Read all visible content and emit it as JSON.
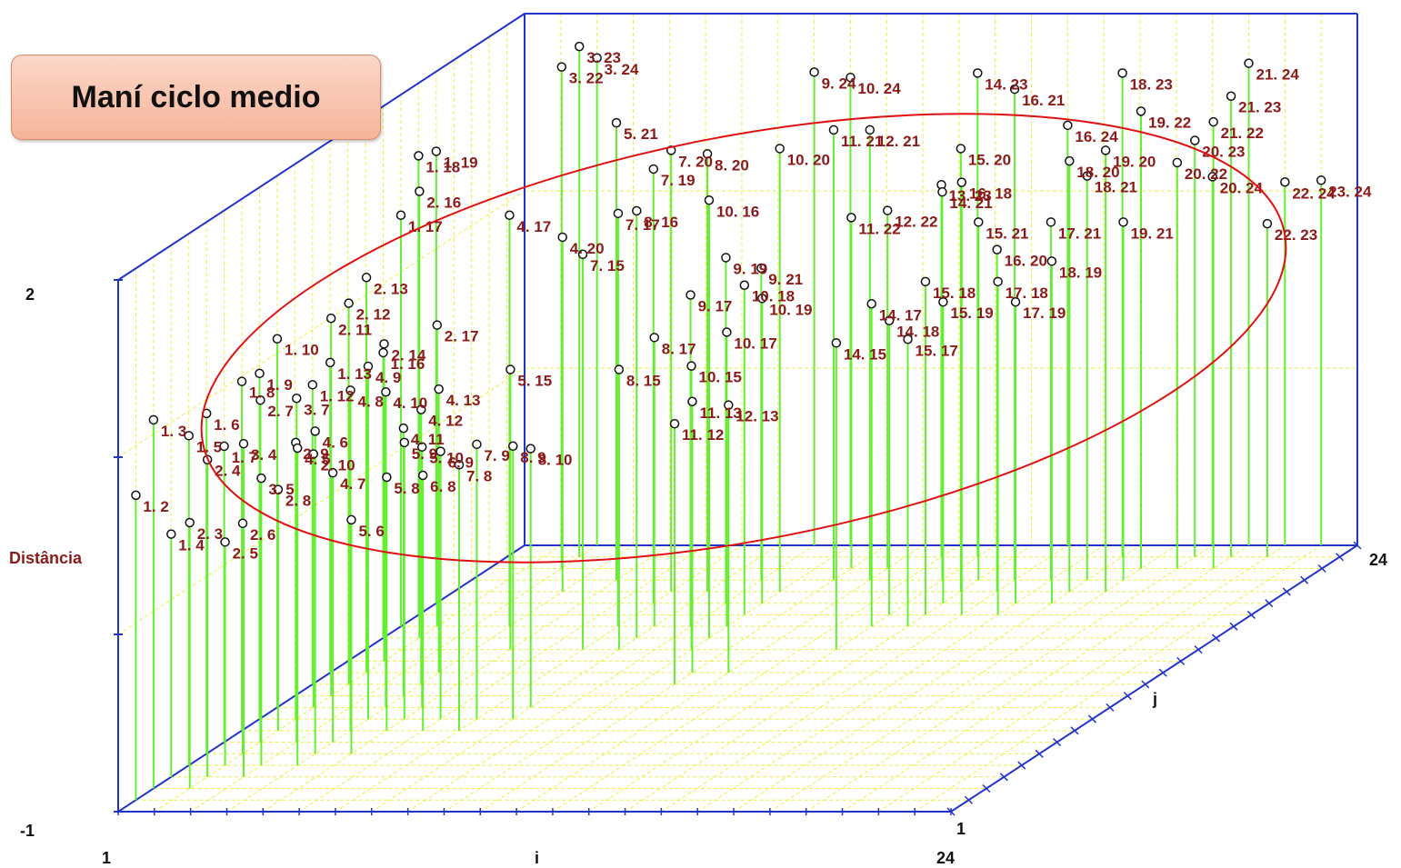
{
  "title": "Maní ciclo medio",
  "chart_data": {
    "type": "scatter",
    "subtype": "3d-stem",
    "axes": {
      "x": {
        "label": "i",
        "min_label": "1",
        "max_label": "24",
        "range": [
          1,
          24
        ]
      },
      "y": {
        "label": "j",
        "min_label": "1",
        "max_label": "24",
        "range": [
          1,
          24
        ]
      },
      "z": {
        "label": "Distância",
        "min_label": "-1",
        "max_label": "2",
        "range": [
          -1,
          2
        ]
      }
    },
    "grid": true,
    "colors": {
      "stem": "#66ee33",
      "grid": "#eeee44",
      "frame": "#2233cc",
      "label": "#8b1a1a",
      "marker": "#111111",
      "ellipse": "#e01010"
    },
    "points": [
      {
        "label": "3. 23",
        "i": 3,
        "j": 23,
        "z": 1.88
      },
      {
        "label": "3. 22",
        "i": 3,
        "j": 22,
        "z": 1.83
      },
      {
        "label": "3. 24",
        "i": 3,
        "j": 24,
        "z": 1.75
      },
      {
        "label": "16. 21",
        "i": 16,
        "j": 21,
        "z": 1.77
      },
      {
        "label": "14. 23",
        "i": 14,
        "j": 23,
        "z": 1.73
      },
      {
        "label": "18. 23",
        "i": 18,
        "j": 23,
        "z": 1.73
      },
      {
        "label": "21. 24",
        "i": 21,
        "j": 24,
        "z": 1.72
      },
      {
        "label": "21. 23",
        "i": 21,
        "j": 23,
        "z": 1.6
      },
      {
        "label": "21. 22",
        "i": 21,
        "j": 22,
        "z": 1.52
      },
      {
        "label": "19. 22",
        "i": 19,
        "j": 22,
        "z": 1.58
      },
      {
        "label": "19. 20",
        "i": 19,
        "j": 20,
        "z": 1.49
      },
      {
        "label": "18. 20",
        "i": 18,
        "j": 20,
        "z": 1.43
      },
      {
        "label": "16. 24",
        "i": 16,
        "j": 24,
        "z": 1.37
      },
      {
        "label": "18. 21",
        "i": 18,
        "j": 21,
        "z": 1.28
      },
      {
        "label": "20. 23",
        "i": 20,
        "j": 23,
        "z": 1.35
      },
      {
        "label": "20. 22",
        "i": 20,
        "j": 22,
        "z": 1.29
      },
      {
        "label": "20. 24",
        "i": 20,
        "j": 24,
        "z": 1.08
      },
      {
        "label": "22. 24",
        "i": 22,
        "j": 24,
        "z": 1.05
      },
      {
        "label": "23. 24",
        "i": 23,
        "j": 24,
        "z": 1.06
      },
      {
        "label": "22. 23",
        "i": 22,
        "j": 23,
        "z": 0.88
      },
      {
        "label": "19. 21",
        "i": 19,
        "j": 21,
        "z": 1.02
      },
      {
        "label": "17. 21",
        "i": 17,
        "j": 21,
        "z": 1.02
      },
      {
        "label": "18. 19",
        "i": 18,
        "j": 19,
        "z": 0.93
      },
      {
        "label": "17. 18",
        "i": 17,
        "j": 18,
        "z": 0.88
      },
      {
        "label": "17. 19",
        "i": 17,
        "j": 19,
        "z": 0.7
      },
      {
        "label": "15. 21",
        "i": 15,
        "j": 21,
        "z": 1.02
      },
      {
        "label": "15. 18",
        "i": 15,
        "j": 18,
        "z": 0.88
      },
      {
        "label": "15. 19",
        "i": 15,
        "j": 19,
        "z": 0.7
      },
      {
        "label": "15. 17",
        "i": 15,
        "j": 17,
        "z": 0.62
      },
      {
        "label": "14. 18",
        "i": 14,
        "j": 18,
        "z": 0.66
      },
      {
        "label": "14. 21",
        "i": 14,
        "j": 21,
        "z": 1.19
      },
      {
        "label": "14. 17",
        "i": 14,
        "j": 17,
        "z": 0.82
      },
      {
        "label": "14. 15",
        "i": 14,
        "j": 15,
        "z": 0.73
      },
      {
        "label": "16. 18",
        "i": 16,
        "j": 18,
        "z": 1.44
      },
      {
        "label": "15. 20",
        "i": 15,
        "j": 20,
        "z": 1.5
      },
      {
        "label": "16. 20",
        "i": 16,
        "j": 20,
        "z": 0.93
      },
      {
        "label": "13. 23",
        "i": 13,
        "j": 23,
        "z": 1.1
      },
      {
        "label": "12. 22",
        "i": 12,
        "j": 22,
        "z": 1.02
      },
      {
        "label": "11. 22",
        "i": 11,
        "j": 22,
        "z": 0.98
      },
      {
        "label": "11. 21",
        "i": 11,
        "j": 21,
        "z": 1.54
      },
      {
        "label": "12. 21",
        "i": 12,
        "j": 21,
        "z": 1.54
      },
      {
        "label": "10. 24",
        "i": 10,
        "j": 24,
        "z": 1.64
      },
      {
        "label": "10. 20",
        "i": 10,
        "j": 20,
        "z": 1.5
      },
      {
        "label": "10. 16",
        "i": 10,
        "j": 16,
        "z": 1.47
      },
      {
        "label": "10. 18",
        "i": 10,
        "j": 18,
        "z": 0.86
      },
      {
        "label": "10. 19",
        "i": 10,
        "j": 19,
        "z": 0.72
      },
      {
        "label": "10. 17",
        "i": 10,
        "j": 17,
        "z": 0.66
      },
      {
        "label": "10. 15",
        "i": 10,
        "j": 15,
        "z": 0.6
      },
      {
        "label": "9. 24",
        "i": 9,
        "j": 24,
        "z": 1.67
      },
      {
        "label": "9. 19",
        "i": 9,
        "j": 19,
        "z": 0.95
      },
      {
        "label": "9. 21",
        "i": 9,
        "j": 21,
        "z": 0.76
      },
      {
        "label": "9. 17",
        "i": 9,
        "j": 17,
        "z": 0.87
      },
      {
        "label": "8. 20",
        "i": 8,
        "j": 20,
        "z": 1.47
      },
      {
        "label": "8. 16",
        "i": 8,
        "j": 16,
        "z": 1.41
      },
      {
        "label": "8. 17",
        "i": 8,
        "j": 17,
        "z": 0.63
      },
      {
        "label": "8. 15",
        "i": 8,
        "j": 15,
        "z": 0.58
      },
      {
        "label": "8. 9",
        "i": 8,
        "j": 9,
        "z": 0.54
      },
      {
        "label": "8. 10",
        "i": 8,
        "j": 10,
        "z": 0.46
      },
      {
        "label": "7. 20",
        "i": 7,
        "j": 20,
        "z": 1.49
      },
      {
        "label": "7. 19",
        "i": 7,
        "j": 19,
        "z": 1.45
      },
      {
        "label": "7. 15",
        "i": 7,
        "j": 15,
        "z": 1.23
      },
      {
        "label": "7. 17",
        "i": 7,
        "j": 17,
        "z": 1.33
      },
      {
        "label": "7. 9",
        "i": 7,
        "j": 9,
        "z": 0.55
      },
      {
        "label": "7. 8",
        "i": 7,
        "j": 8,
        "z": 0.5
      },
      {
        "label": "5. 21",
        "i": 5,
        "j": 21,
        "z": 1.58
      },
      {
        "label": "5. 8",
        "i": 5,
        "j": 8,
        "z": 0.43
      },
      {
        "label": "5. 6",
        "i": 5,
        "j": 6,
        "z": 0.32
      },
      {
        "label": "5. 10",
        "i": 5,
        "j": 10,
        "z": 0.47
      },
      {
        "label": "5. 15",
        "i": 5,
        "j": 15,
        "z": 0.58
      },
      {
        "label": "4. 17",
        "i": 4,
        "j": 17,
        "z": 1.32
      },
      {
        "label": "4. 20",
        "i": 4,
        "j": 20,
        "z": 1.0
      },
      {
        "label": "4. 7",
        "i": 4,
        "j": 7,
        "z": 0.52
      },
      {
        "label": "4. 5",
        "i": 4,
        "j": 5,
        "z": 0.79
      },
      {
        "label": "4. 6",
        "i": 4,
        "j": 6,
        "z": 0.82
      },
      {
        "label": "4. 9",
        "i": 4,
        "j": 9,
        "z": 0.99
      },
      {
        "label": "4. 8",
        "i": 4,
        "j": 8,
        "z": 0.92
      },
      {
        "label": "4. 10",
        "i": 4,
        "j": 10,
        "z": 0.78
      },
      {
        "label": "4. 13",
        "i": 4,
        "j": 13,
        "z": 0.6
      },
      {
        "label": "4. 12",
        "i": 4,
        "j": 12,
        "z": 0.55
      },
      {
        "label": "4. 11",
        "i": 4,
        "j": 11,
        "z": 0.51
      },
      {
        "label": "3. 4",
        "i": 3,
        "j": 4,
        "z": 0.88
      },
      {
        "label": "3. 5",
        "i": 3,
        "j": 5,
        "z": 0.62
      },
      {
        "label": "3. 7",
        "i": 3,
        "j": 7,
        "z": 0.94
      },
      {
        "label": "2. 3",
        "i": 2,
        "j": 3,
        "z": 0.5
      },
      {
        "label": "2. 4",
        "i": 2,
        "j": 4,
        "z": 0.79
      },
      {
        "label": "2. 5",
        "i": 2,
        "j": 5,
        "z": 0.26
      },
      {
        "label": "2. 6",
        "i": 2,
        "j": 6,
        "z": 0.3
      },
      {
        "label": "2. 7",
        "i": 2,
        "j": 7,
        "z": 0.93
      },
      {
        "label": "2. 8",
        "i": 2,
        "j": 8,
        "z": 0.36
      },
      {
        "label": "2. 9",
        "i": 2,
        "j": 9,
        "z": 0.56
      },
      {
        "label": "2. 10",
        "i": 2,
        "j": 10,
        "z": 0.43
      },
      {
        "label": "2. 11",
        "i": 2,
        "j": 11,
        "z": 1.13
      },
      {
        "label": "2. 12",
        "i": 2,
        "j": 12,
        "z": 1.15
      },
      {
        "label": "2. 13",
        "i": 2,
        "j": 13,
        "z": 1.23
      },
      {
        "label": "2. 14",
        "i": 2,
        "j": 14,
        "z": 0.79
      },
      {
        "label": "2. 16",
        "i": 2,
        "j": 16,
        "z": 1.52
      },
      {
        "label": "2. 17",
        "i": 2,
        "j": 17,
        "z": 0.7
      },
      {
        "label": "1. 2",
        "i": 1,
        "j": 2,
        "z": 0.72
      },
      {
        "label": "1. 3",
        "i": 1,
        "j": 3,
        "z": 1.08
      },
      {
        "label": "1. 4",
        "i": 1,
        "j": 4,
        "z": 0.37
      },
      {
        "label": "1. 5",
        "i": 1,
        "j": 5,
        "z": 0.86
      },
      {
        "label": "1. 6",
        "i": 1,
        "j": 6,
        "z": 0.92
      },
      {
        "label": "1. 7",
        "i": 1,
        "j": 7,
        "z": 0.67
      },
      {
        "label": "1. 8",
        "i": 1,
        "j": 8,
        "z": 0.97
      },
      {
        "label": "1. 9",
        "i": 1,
        "j": 9,
        "z": 0.95
      },
      {
        "label": "1. 10",
        "i": 1,
        "j": 10,
        "z": 1.08
      },
      {
        "label": "1. 12",
        "i": 1,
        "j": 12,
        "z": 0.69
      },
      {
        "label": "1. 13",
        "i": 1,
        "j": 13,
        "z": 0.75
      },
      {
        "label": "1. 16",
        "i": 1,
        "j": 16,
        "z": 0.61
      },
      {
        "label": "1. 17",
        "i": 1,
        "j": 17,
        "z": 1.32
      },
      {
        "label": "1. 18",
        "i": 1,
        "j": 18,
        "z": 1.59
      },
      {
        "label": "1. 19",
        "i": 1,
        "j": 19,
        "z": 1.55
      },
      {
        "label": "11. 12",
        "i": 11,
        "j": 12,
        "z": 0.47
      },
      {
        "label": "11. 13",
        "i": 11,
        "j": 13,
        "z": 0.53
      },
      {
        "label": "12. 13",
        "i": 12,
        "j": 13,
        "z": 0.51
      },
      {
        "label": "5. 9",
        "i": 5,
        "j": 9,
        "z": 0.56
      },
      {
        "label": "6. 8",
        "i": 6,
        "j": 8,
        "z": 0.44
      },
      {
        "label": "6. 9",
        "i": 6,
        "j": 9,
        "z": 0.51
      }
    ]
  }
}
